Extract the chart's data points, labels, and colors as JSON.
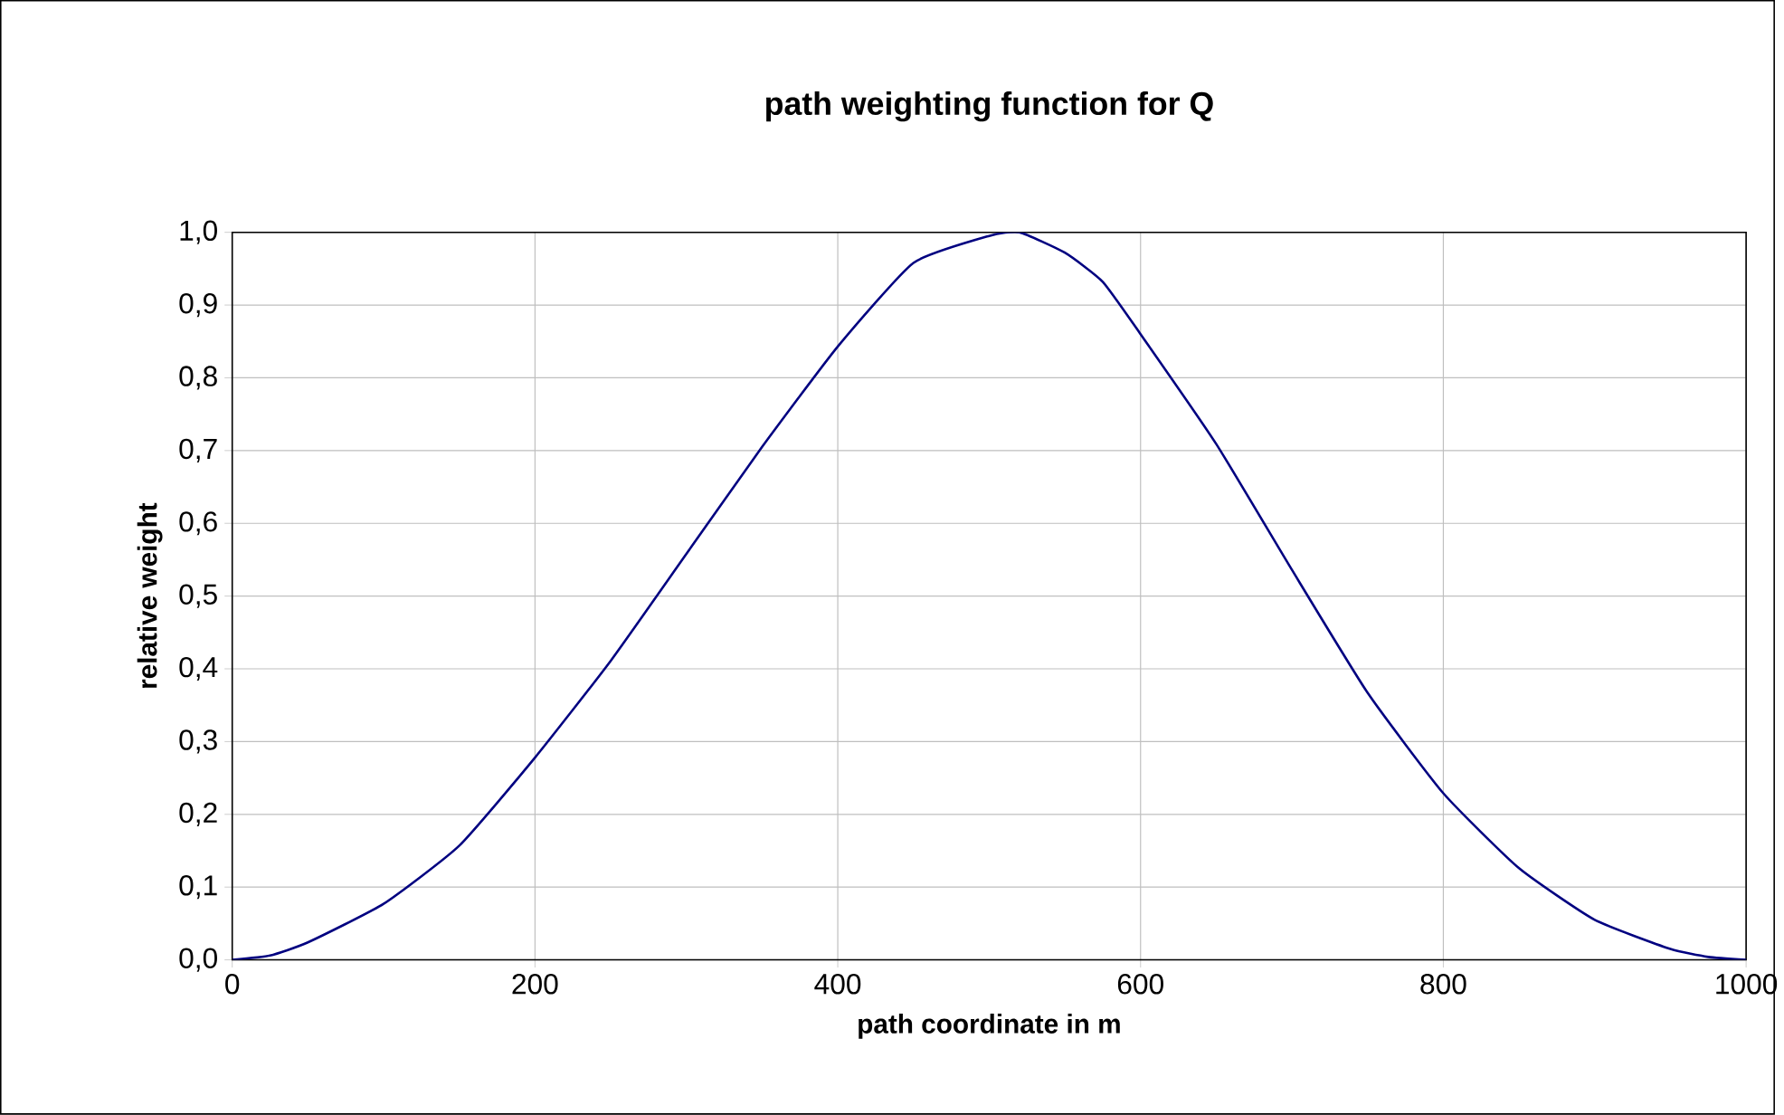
{
  "chart_data": {
    "type": "line",
    "title": "path weighting function for Q",
    "xlabel": "path coordinate in m",
    "ylabel": "relative weight",
    "x": [
      0,
      25,
      50,
      100,
      150,
      200,
      250,
      300,
      350,
      400,
      450,
      500,
      520,
      550,
      575,
      600,
      650,
      700,
      750,
      800,
      850,
      900,
      950,
      975,
      1000
    ],
    "series": [
      {
        "color": "#000080",
        "values": [
          0.0,
          0.006,
          0.024,
          0.077,
          0.157,
          0.278,
          0.411,
          0.558,
          0.705,
          0.843,
          0.958,
          0.995,
          1.0,
          0.972,
          0.932,
          0.86,
          0.709,
          0.536,
          0.367,
          0.229,
          0.126,
          0.055,
          0.015,
          0.004,
          0.0
        ]
      }
    ],
    "xlim": [
      0,
      1000
    ],
    "xticks": [
      0,
      200,
      400,
      600,
      800,
      1000
    ],
    "ylim": [
      0,
      1
    ],
    "yticks": [
      {
        "value": 0,
        "label": "0,0"
      },
      {
        "value": 0.1,
        "label": "0,1"
      },
      {
        "value": 0.2,
        "label": "0,2"
      },
      {
        "value": 0.3,
        "label": "0,3"
      },
      {
        "value": 0.4,
        "label": "0,4"
      },
      {
        "value": 0.5,
        "label": "0,5"
      },
      {
        "value": 0.6,
        "label": "0,6"
      },
      {
        "value": 0.7,
        "label": "0,7"
      },
      {
        "value": 0.8,
        "label": "0,8"
      },
      {
        "value": 0.9,
        "label": "0,9"
      },
      {
        "value": 1,
        "label": "1,0"
      }
    ],
    "grid": true,
    "marker": "none",
    "line_style": "solid"
  }
}
